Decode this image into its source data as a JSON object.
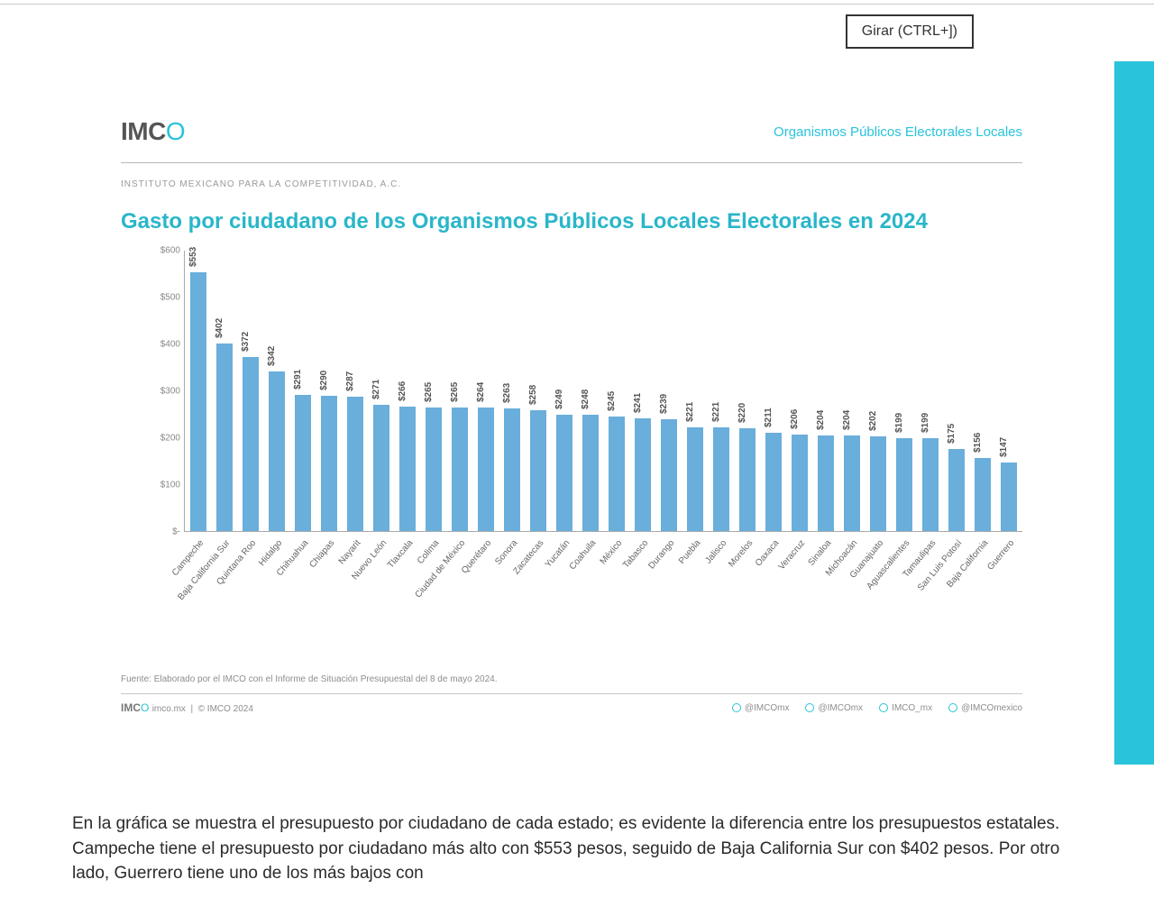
{
  "ui": {
    "rotate_button": "Girar (CTRL+])"
  },
  "header": {
    "logo_main": "IMC",
    "logo_accent": "O",
    "right_link": "Organismos Públicos Electorales Locales",
    "subhead": "Instituto Mexicano para la Competitividad, A.C."
  },
  "chart": {
    "type": "bar",
    "title": "Gasto por ciudadano de los Organismos Públicos Locales Electorales en 2024",
    "bar_color": "#6aaedb",
    "background_color": "#ffffff",
    "axis_color": "#aaaaaa",
    "title_color": "#29b6c9",
    "title_fontsize": 24,
    "label_fontsize": 10,
    "ylim": [
      0,
      600
    ],
    "ytick_step": 100,
    "ytick_labels": [
      "$-",
      "$100",
      "$200",
      "$300",
      "$400",
      "$500",
      "$600"
    ],
    "bar_width_ratio": 0.62,
    "categories": [
      "Campeche",
      "Baja California Sur",
      "Quintana Roo",
      "Hidalgo",
      "Chihuahua",
      "Chiapas",
      "Nayarit",
      "Nuevo León",
      "Tlaxcala",
      "Colima",
      "Ciudad de México",
      "Querétaro",
      "Sonora",
      "Zacatecas",
      "Yucatán",
      "Coahuila",
      "México",
      "Tabasco",
      "Durango",
      "Puebla",
      "Jalisco",
      "Morelos",
      "Oaxaca",
      "Veracruz",
      "Sinaloa",
      "Michoacán",
      "Guanajuato",
      "Aguascalientes",
      "Tamaulipas",
      "San Luis Potosí",
      "Baja California",
      "Guerrero"
    ],
    "values": [
      553,
      402,
      372,
      342,
      291,
      290,
      287,
      271,
      266,
      265,
      265,
      264,
      263,
      258,
      249,
      248,
      245,
      241,
      239,
      221,
      221,
      220,
      211,
      206,
      204,
      204,
      202,
      199,
      199,
      175,
      156,
      147
    ],
    "value_prefix": "$"
  },
  "source": "Fuente: Elaborado por el IMCO con el Informe de Situación Presupuestal del 8 de mayo 2024.",
  "footer": {
    "logo_main": "IMC",
    "logo_accent": "O",
    "site": "imco.mx",
    "copyright": "© IMCO 2024",
    "socials": [
      "@IMCOmx",
      "@IMCOmx",
      "IMCO_mx",
      "@IMCOmexico"
    ]
  },
  "body_text": "En la gráfica se muestra el presupuesto por ciudadano de cada estado; es evidente la diferencia entre los presupuestos estatales. Campeche tiene el presupuesto por ciudadano más alto con $553 pesos, seguido de Baja California Sur con $402 pesos. Por otro lado, Guerrero tiene uno de los más bajos con"
}
